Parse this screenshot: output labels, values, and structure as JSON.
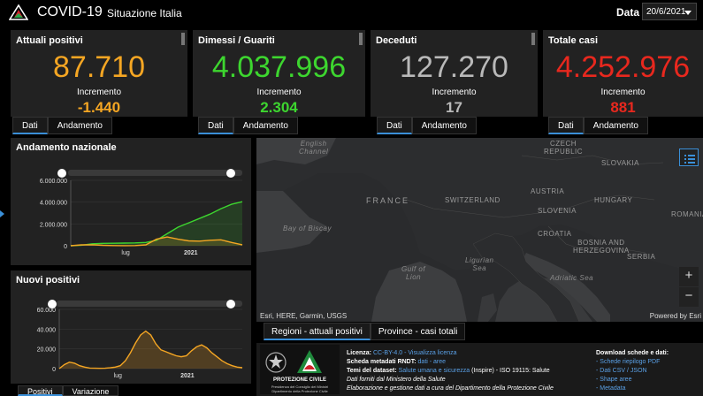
{
  "header": {
    "title": "COVID-19",
    "subtitle": "Situazione Italia",
    "date_label": "Data",
    "date_value": "20/6/2021"
  },
  "cards": [
    {
      "title": "Attuali positivi",
      "value": "87.710",
      "inc_label": "Incremento",
      "inc_value": "-1.440",
      "color": "#f5a623"
    },
    {
      "title": "Dimessi / Guariti",
      "value": "4.037.996",
      "inc_label": "Incremento",
      "inc_value": "2.304",
      "color": "#3dd62f"
    },
    {
      "title": "Deceduti",
      "value": "127.270",
      "inc_label": "Incremento",
      "inc_value": "17",
      "color": "#b9b9b9"
    },
    {
      "title": "Totale casi",
      "value": "4.252.976",
      "inc_label": "Incremento",
      "inc_value": "881",
      "color": "#e8281e"
    }
  ],
  "card_tabs": {
    "dati": "Dati",
    "andamento": "Andamento"
  },
  "trend_panel": {
    "title": "Andamento nazionale",
    "y_ticks": [
      "6.000.000",
      "4.000.000",
      "2.000.000",
      "0"
    ],
    "x_ticks": [
      "lug",
      "2021"
    ]
  },
  "new_panel": {
    "title": "Nuovi positivi",
    "y_ticks": [
      "60.000",
      "40.000",
      "20.000",
      "0"
    ],
    "x_ticks": [
      "lug",
      "2021"
    ]
  },
  "bottom_tabs": {
    "positivi": "Positivi",
    "variazione": "Variazione"
  },
  "map": {
    "labels": {
      "english_channel": "English\nChannel",
      "czech": "CZECH\nREPUBLIC",
      "slovakia": "SLOVAKIA",
      "austria": "AUSTRIA",
      "hungary": "HUNGARY",
      "france": "FRANCE",
      "switzerland": "SWITZERLAND",
      "slovenia": "SLOVENIA",
      "romania": "ROMANIA",
      "bay_biscay": "Bay of Biscay",
      "croatia": "CROATIA",
      "bosnia": "BOSNIA AND\nHERZEGOVINA",
      "serbia": "SERBIA",
      "gulf_lion": "Gulf of\nLion",
      "ligurian": "Ligurian\nSea",
      "adriatic": "Adriatic Sea"
    },
    "attribution": "Esri, HERE, Garmin, USGS",
    "powered": "Powered by Esri",
    "zoom_in": "+",
    "zoom_out": "−"
  },
  "map_tabs": {
    "regioni": "Regioni - attuali positivi",
    "province": "Province - casi totali"
  },
  "footer": {
    "pc_name": "PROTEZIONE CIVILE",
    "pc_small": "Presidenza del Consiglio dei Ministri\nDipartimento della Protezione Civile",
    "licenza_label": "Licenza:",
    "licenza_link": "CC-BY-4.0 - Visualizza licenza",
    "scheda_label": "Scheda metadati RNDT:",
    "scheda_link": "dati - aree",
    "temi_label": "Temi del dataset:",
    "temi_link": "Salute umana e sicurezza",
    "temi_rest": "(Inspire) - ISO 19115: Salute",
    "dati_forniti": "Dati forniti dal Ministero della Salute",
    "elaborazione": "Elaborazione e gestione dati a cura del Dipartimento della Protezione Civile",
    "download_title": "Download schede e dati:",
    "downloads": [
      "- Schede riepilogo PDF",
      "- Dati CSV / JSON",
      "- Shape aree",
      "- Metadata"
    ]
  },
  "chart_data": [
    {
      "type": "line",
      "title": "Andamento nazionale",
      "ylim": [
        0,
        6000000
      ],
      "y_ticks": [
        0,
        2000000,
        4000000,
        6000000
      ],
      "x_ticks": [
        "lug",
        "2021"
      ],
      "series": [
        {
          "values": [
            0,
            50000,
            180000,
            220000,
            230000,
            240000,
            260000,
            300000,
            500000,
            1100000,
            1700000,
            2100000,
            2500000,
            2900000,
            3400000,
            3800000,
            4037996
          ],
          "color": "#3dd62f"
        },
        {
          "values": [
            0,
            80000,
            90000,
            40000,
            15000,
            12000,
            20000,
            80000,
            600000,
            800000,
            600000,
            450000,
            420000,
            500000,
            540000,
            300000,
            87710
          ],
          "color": "#f5a623"
        }
      ]
    },
    {
      "type": "area",
      "title": "Nuovi positivi",
      "ylim": [
        0,
        60000
      ],
      "y_ticks": [
        0,
        20000,
        40000,
        60000
      ],
      "x_ticks": [
        "lug",
        "2021"
      ],
      "series": [
        {
          "values": [
            0,
            4000,
            6500,
            5500,
            3000,
            1500,
            500,
            400,
            300,
            400,
            800,
            1500,
            3000,
            8000,
            16000,
            26000,
            34000,
            38000,
            34000,
            25000,
            19000,
            17000,
            15000,
            13000,
            12000,
            13000,
            18000,
            22000,
            24000,
            21000,
            16000,
            12000,
            8000,
            5000,
            3000,
            1500,
            881
          ],
          "color": "#f5a623"
        }
      ]
    }
  ]
}
